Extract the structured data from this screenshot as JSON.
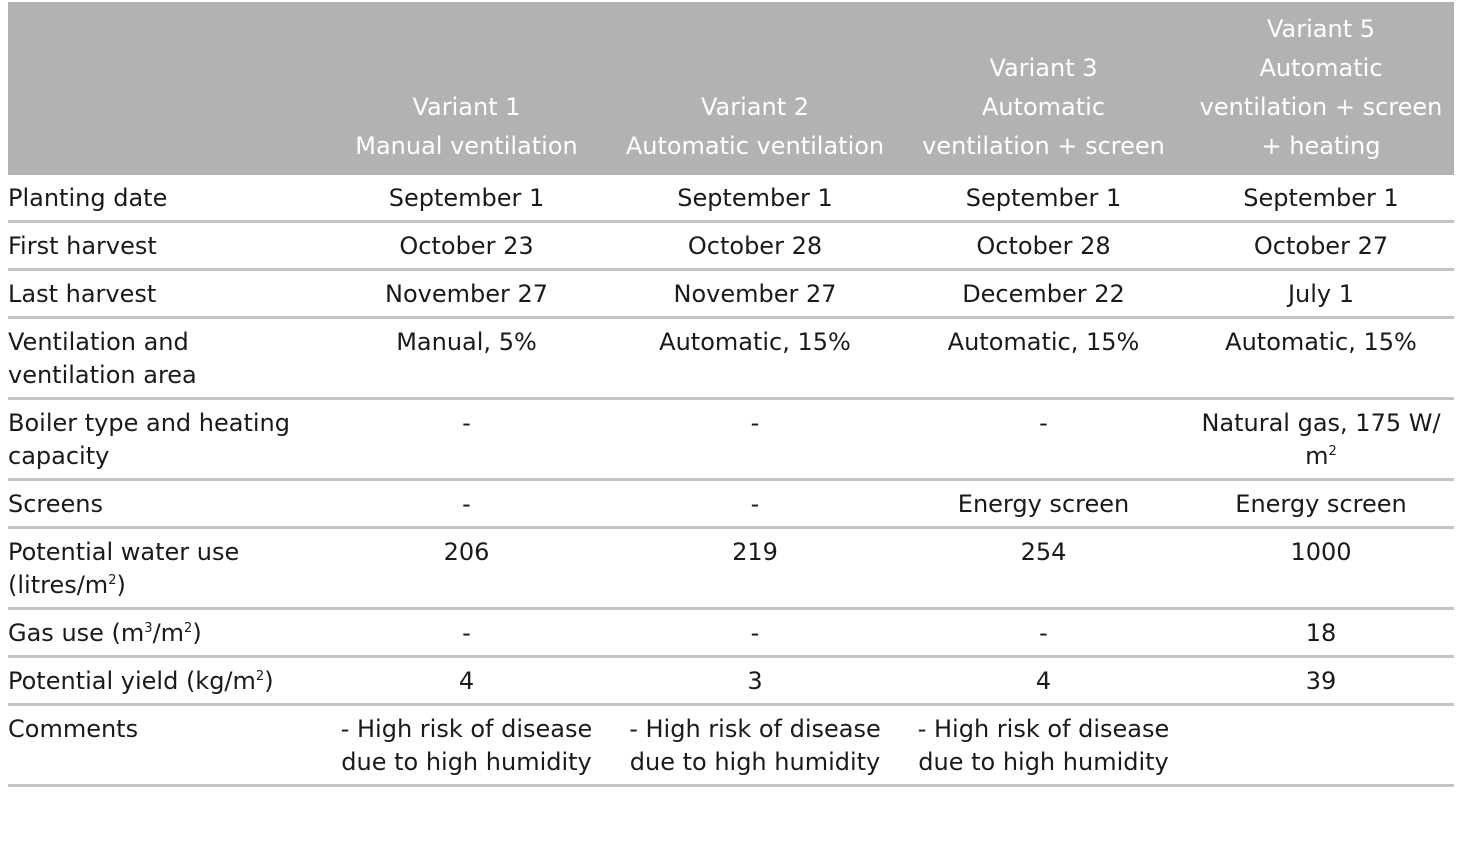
{
  "header": {
    "corner": "",
    "variants": [
      {
        "lines": [
          "Variant 1",
          "Manual ventilation"
        ]
      },
      {
        "lines": [
          "Variant 2",
          "Automatic ventilation"
        ]
      },
      {
        "lines": [
          "Variant 3",
          "Automatic",
          "ventilation + screen"
        ]
      },
      {
        "lines": [
          "Variant 5",
          "Automatic",
          "ventilation + screen",
          "+ heating"
        ]
      }
    ]
  },
  "rows": {
    "planting_date": {
      "label": "Planting date",
      "values": [
        "September 1",
        "September 1",
        "September 1",
        "September 1"
      ]
    },
    "first_harvest": {
      "label": "First harvest",
      "values": [
        "October 23",
        "October 28",
        "October 28",
        "October 27"
      ]
    },
    "last_harvest": {
      "label": "Last harvest",
      "values": [
        "November 27",
        "November 27",
        "December 22",
        "July 1"
      ]
    },
    "ventilation": {
      "label_lines": [
        "Ventilation and",
        "ventilation area"
      ],
      "values": [
        "Manual, 5%",
        "Automatic, 15%",
        "Automatic, 15%",
        "Automatic, 15%"
      ]
    },
    "boiler": {
      "label_lines": [
        "Boiler type and heating",
        "capacity"
      ],
      "values": [
        "-",
        "-",
        "-"
      ],
      "v5_line1": "Natural gas, 175 W/",
      "v5_line2_base": "m",
      "v5_line2_sup": "2"
    },
    "screens": {
      "label": "Screens",
      "values": [
        "-",
        "-",
        "Energy screen",
        "Energy screen"
      ]
    },
    "water_use": {
      "label_line1": "Potential water use",
      "label_line2_pre": "(litres/m",
      "label_line2_sup": "2",
      "label_line2_post": ")",
      "values": [
        "206",
        "219",
        "254",
        "1000"
      ]
    },
    "gas_use": {
      "label_pre": "Gas use (m",
      "label_sup1": "3",
      "label_mid": "/m",
      "label_sup2": "2",
      "label_post": ")",
      "values": [
        "-",
        "-",
        "-",
        "18"
      ]
    },
    "yield": {
      "label_pre": "Potential yield (kg/m",
      "label_sup": "2",
      "label_post": ")",
      "values": [
        "4",
        "3",
        "4",
        "39"
      ]
    },
    "comments": {
      "label": "Comments",
      "values": [
        [
          "- High risk of disease",
          "due to high humidity"
        ],
        [
          "- High risk of disease",
          "due to high humidity"
        ],
        [
          "- High risk of disease",
          "due to high humidity"
        ]
      ],
      "v5": ""
    }
  }
}
